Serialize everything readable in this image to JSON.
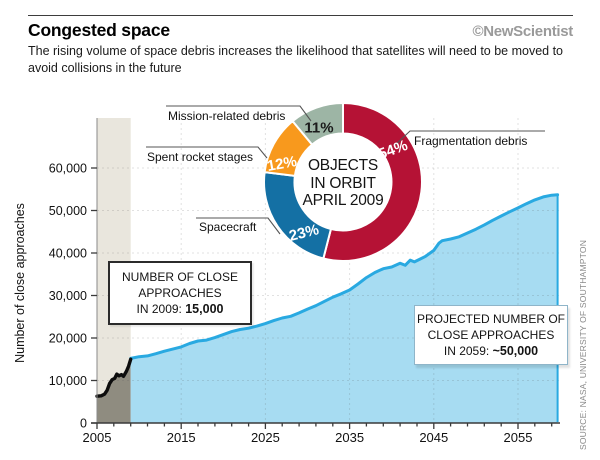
{
  "header": {
    "title": "Congested space",
    "brand": "©NewScientist",
    "subtitle": "The rising volume of space debris increases the likelihood that satellites will need to be moved to avoid collisions in the future"
  },
  "source": "SOURCE: NASA, UNIVERSITY OF SOUTHAMPTON",
  "chart_data": [
    {
      "type": "pie",
      "style": "donut",
      "start": "top",
      "direction": "clockwise",
      "title": [
        "OBJECTS",
        "IN ORBIT",
        "APRIL 2009"
      ],
      "slices": [
        {
          "label": "Fragmentation debris",
          "pct": 54,
          "pct_label": "54%",
          "color": "#b51235"
        },
        {
          "label": "Spacecraft",
          "pct": 23,
          "pct_label": "23%",
          "color": "#1470a4"
        },
        {
          "label": "Spent rocket stages",
          "pct": 12,
          "pct_label": "12%",
          "color": "#f8991d"
        },
        {
          "label": "Mission-related debris",
          "pct": 11,
          "pct_label": "11%",
          "color": "#9db5a5"
        }
      ]
    },
    {
      "type": "area",
      "ylabel": "Number of close approaches",
      "xlabel": "",
      "xlim": [
        2005,
        2060.5
      ],
      "ylim": [
        0,
        71000
      ],
      "grid": true,
      "y_ticks": [
        {
          "v": 0,
          "label": "0"
        },
        {
          "v": 10000,
          "label": "10,000"
        },
        {
          "v": 20000,
          "label": "20,000"
        },
        {
          "v": 30000,
          "label": "30,000"
        },
        {
          "v": 40000,
          "label": "40,000"
        },
        {
          "v": 50000,
          "label": "50,000"
        },
        {
          "v": 60000,
          "label": "60,000"
        }
      ],
      "x_ticks": [
        {
          "v": 2005,
          "label": "2005"
        },
        {
          "v": 2015,
          "label": "2015"
        },
        {
          "v": 2025,
          "label": "2025"
        },
        {
          "v": 2035,
          "label": "2035"
        },
        {
          "v": 2045,
          "label": "2045"
        },
        {
          "v": 2055,
          "label": "2055"
        }
      ],
      "series": [
        {
          "name": "observed close approaches 2005-2009",
          "color": "#0d0d0d",
          "fill": "#8f8c80",
          "band_color": "#e9e6dd",
          "points": [
            [
              2005,
              6300
            ],
            [
              2005.5,
              6400
            ],
            [
              2005.9,
              6800
            ],
            [
              2006.2,
              7700
            ],
            [
              2006.5,
              9300
            ],
            [
              2006.8,
              10200
            ],
            [
              2007.1,
              10500
            ],
            [
              2007.35,
              11500
            ],
            [
              2007.6,
              11100
            ],
            [
              2007.9,
              11400
            ],
            [
              2008.15,
              11000
            ],
            [
              2008.5,
              12200
            ],
            [
              2008.75,
              13400
            ],
            [
              2009,
              15000
            ]
          ]
        },
        {
          "name": "projected close approaches 2009-2059",
          "color": "#29a9e1",
          "fill": "#a7dcf2",
          "points": [
            [
              2009,
              15200
            ],
            [
              2010,
              15600
            ],
            [
              2011,
              15800
            ],
            [
              2012,
              16300
            ],
            [
              2013,
              16900
            ],
            [
              2014,
              17400
            ],
            [
              2015,
              17900
            ],
            [
              2016,
              18700
            ],
            [
              2017,
              19300
            ],
            [
              2018,
              19500
            ],
            [
              2019,
              20100
            ],
            [
              2020,
              20800
            ],
            [
              2021,
              21500
            ],
            [
              2022,
              22000
            ],
            [
              2023,
              22300
            ],
            [
              2024,
              22800
            ],
            [
              2025,
              23400
            ],
            [
              2026,
              24100
            ],
            [
              2027,
              24700
            ],
            [
              2028,
              25100
            ],
            [
              2029,
              25900
            ],
            [
              2030,
              26800
            ],
            [
              2031,
              27600
            ],
            [
              2032,
              28600
            ],
            [
              2033,
              29600
            ],
            [
              2034,
              30400
            ],
            [
              2035,
              31300
            ],
            [
              2036,
              32700
            ],
            [
              2037,
              34200
            ],
            [
              2038,
              35400
            ],
            [
              2039,
              36300
            ],
            [
              2040,
              36700
            ],
            [
              2041,
              37600
            ],
            [
              2041.6,
              37100
            ],
            [
              2042.2,
              38300
            ],
            [
              2042.7,
              37900
            ],
            [
              2043.3,
              38500
            ],
            [
              2044,
              39200
            ],
            [
              2045,
              40600
            ],
            [
              2045.6,
              42300
            ],
            [
              2046,
              42900
            ],
            [
              2047,
              43300
            ],
            [
              2048,
              43800
            ],
            [
              2049,
              44700
            ],
            [
              2050,
              45600
            ],
            [
              2051,
              46600
            ],
            [
              2052,
              47700
            ],
            [
              2053,
              48700
            ],
            [
              2054,
              49700
            ],
            [
              2055,
              50600
            ],
            [
              2056,
              51600
            ],
            [
              2057,
              52500
            ],
            [
              2058,
              53200
            ],
            [
              2059,
              53600
            ],
            [
              2059.7,
              53700
            ]
          ]
        }
      ]
    }
  ],
  "annotations": {
    "approaches_2009": {
      "line1": "NUMBER OF CLOSE",
      "line2": "APPROACHES",
      "prefix": "IN 2009: ",
      "value": "15,000"
    },
    "approaches_2059": {
      "line1": "PROJECTED NUMBER OF",
      "line2": "CLOSE APPROACHES",
      "prefix": "IN 2059: ",
      "value": "~50,000"
    }
  }
}
